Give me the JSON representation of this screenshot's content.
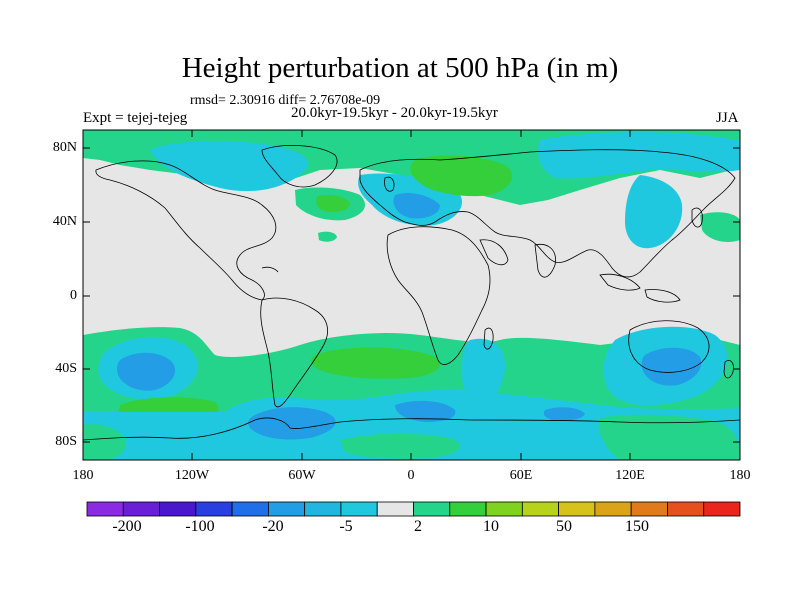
{
  "title": "Height perturbation at 500 hPa (in m)",
  "stats": "rmsd= 2.30916 diff= 2.76708e-09",
  "experiment": "Expt = tejej-tejeg",
  "period": "20.0kyr-19.5kyr - 20.0kyr-19.5kyr",
  "season": "JJA",
  "lat_ticks": [
    "80N",
    "40N",
    "0",
    "40S",
    "80S"
  ],
  "lon_ticks": [
    "180",
    "120W",
    "60W",
    "0",
    "60E",
    "120E",
    "180"
  ],
  "colorbar": {
    "labels": [
      "-200",
      "-100",
      "-20",
      "-5",
      "2",
      "10",
      "50",
      "150"
    ],
    "colors": [
      "#8a2be2",
      "#6a1fd6",
      "#4b17cc",
      "#2a3fe0",
      "#1f6fe8",
      "#239ee6",
      "#22b5e0",
      "#20c8df",
      "#e6e6e6",
      "#24d48a",
      "#35cf3c",
      "#7fd21f",
      "#b7d21b",
      "#d6c21a",
      "#dca31a",
      "#e07a1a",
      "#e5501c",
      "#ea261c"
    ]
  },
  "colors": {
    "background": "#e6e6e6",
    "negative_light": "#20c8df",
    "negative_mid": "#239ee6",
    "positive_light": "#24d48a",
    "positive_mid": "#35cf3c"
  }
}
